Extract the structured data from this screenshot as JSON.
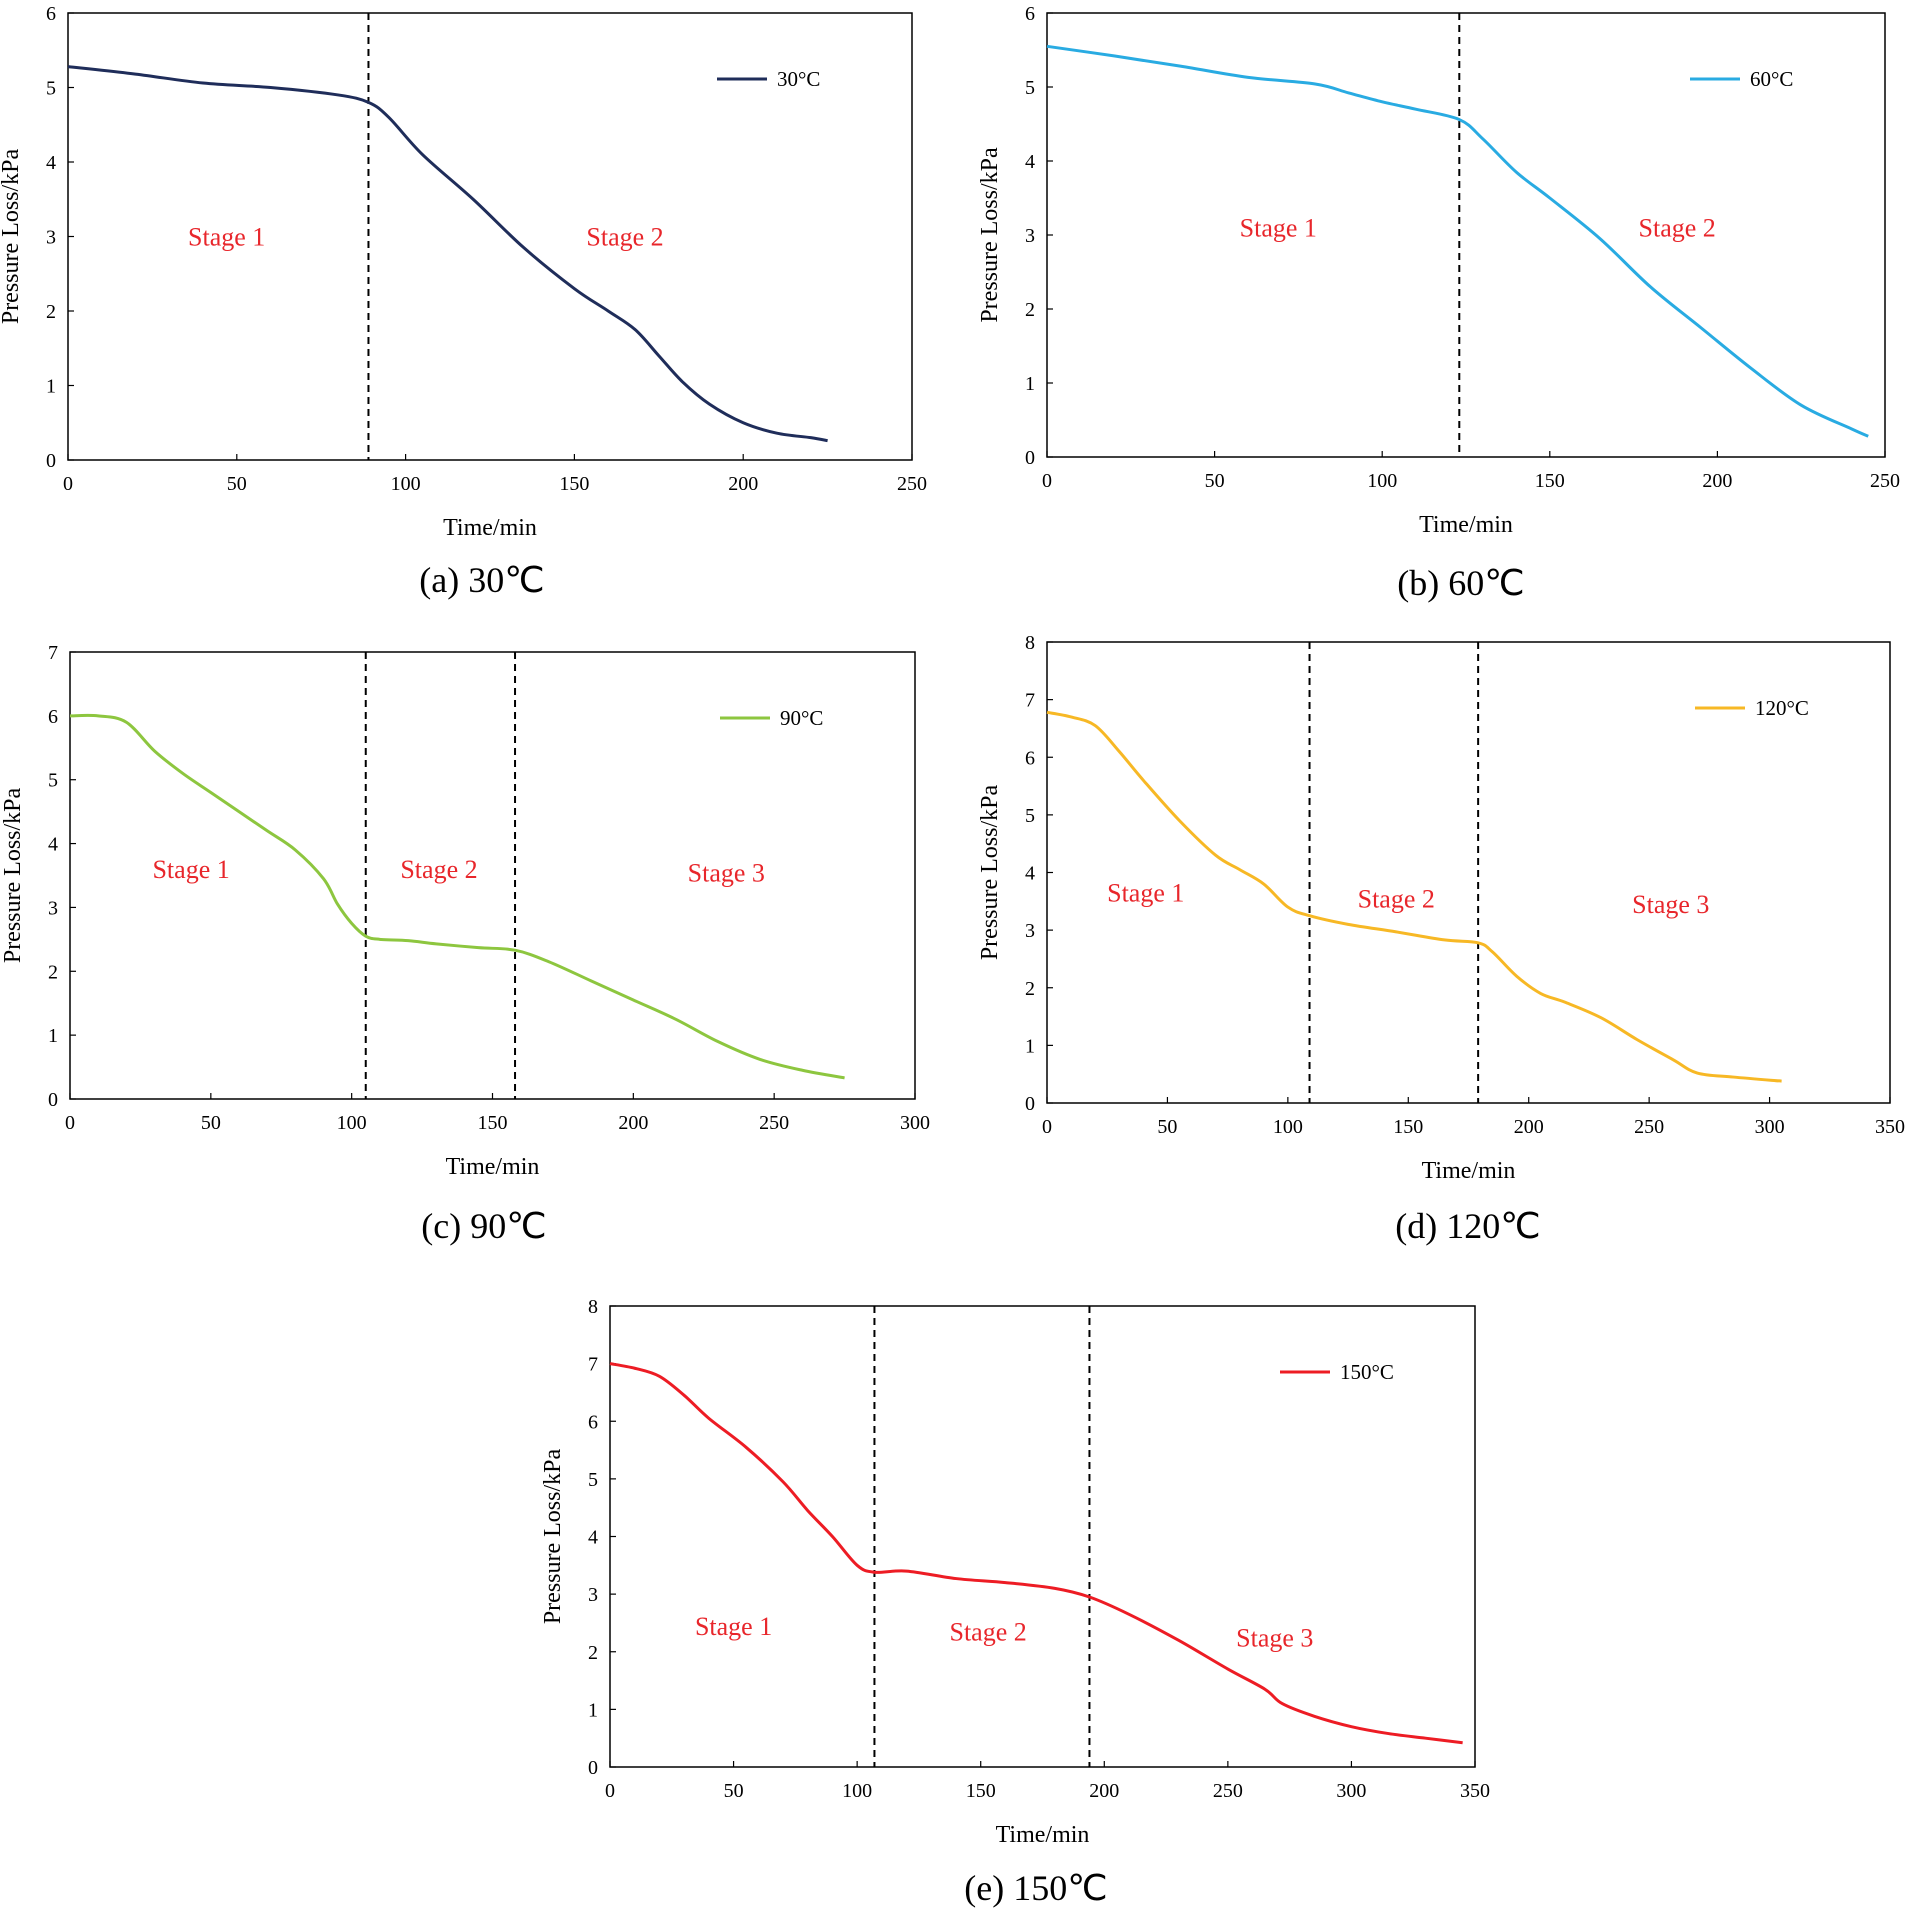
{
  "chart_data": [
    {
      "type": "line",
      "id": "a",
      "caption": "(a)  30℃",
      "xlabel": "Time/min",
      "ylabel": "Pressure Loss/kPa",
      "xlim": [
        0,
        250
      ],
      "ylim": [
        0,
        6
      ],
      "xticks": [
        0,
        50,
        100,
        150,
        200,
        250
      ],
      "yticks": [
        0,
        1,
        2,
        3,
        4,
        5,
        6
      ],
      "dividers": [
        89
      ],
      "stages": [
        {
          "label": "Stage 1",
          "x": 47,
          "y": 3.0
        },
        {
          "label": "Stage 2",
          "x": 165,
          "y": 3.0
        }
      ],
      "legend_position": "top-right",
      "series": [
        {
          "name": "30°C",
          "color": "#1f2d5a",
          "x": [
            0,
            20,
            40,
            60,
            80,
            89,
            95,
            105,
            120,
            135,
            150,
            160,
            168,
            175,
            182,
            190,
            200,
            210,
            220,
            225
          ],
          "y": [
            5.28,
            5.18,
            5.06,
            5.0,
            4.9,
            4.8,
            4.6,
            4.1,
            3.5,
            2.85,
            2.3,
            2.0,
            1.75,
            1.4,
            1.05,
            0.75,
            0.5,
            0.36,
            0.3,
            0.26
          ]
        }
      ]
    },
    {
      "type": "line",
      "id": "b",
      "caption": "(b)  60℃",
      "xlabel": "Time/min",
      "ylabel": "Pressure Loss/kPa",
      "xlim": [
        0,
        250
      ],
      "ylim": [
        0,
        6
      ],
      "xticks": [
        0,
        50,
        100,
        150,
        200,
        250
      ],
      "yticks": [
        0,
        1,
        2,
        3,
        4,
        5,
        6
      ],
      "dividers": [
        123
      ],
      "stages": [
        {
          "label": "Stage 1",
          "x": 69,
          "y": 3.1
        },
        {
          "label": "Stage 2",
          "x": 188,
          "y": 3.1
        }
      ],
      "legend_position": "top-right",
      "series": [
        {
          "name": "60°C",
          "color": "#29abe2",
          "x": [
            0,
            20,
            40,
            60,
            80,
            90,
            100,
            110,
            123,
            130,
            140,
            150,
            165,
            180,
            195,
            210,
            225,
            240,
            245
          ],
          "y": [
            5.55,
            5.42,
            5.28,
            5.13,
            5.04,
            4.92,
            4.8,
            4.7,
            4.56,
            4.3,
            3.85,
            3.5,
            2.95,
            2.3,
            1.75,
            1.2,
            0.7,
            0.38,
            0.28
          ]
        }
      ]
    },
    {
      "type": "line",
      "id": "c",
      "caption": "(c)  90℃",
      "xlabel": "Time/min",
      "ylabel": "Pressure Loss/kPa",
      "xlim": [
        0,
        300
      ],
      "ylim": [
        0,
        7
      ],
      "xticks": [
        0,
        50,
        100,
        150,
        200,
        250,
        300
      ],
      "yticks": [
        0,
        1,
        2,
        3,
        4,
        5,
        6,
        7
      ],
      "dividers": [
        105,
        158
      ],
      "stages": [
        {
          "label": "Stage 1",
          "x": 43,
          "y": 3.6
        },
        {
          "label": "Stage 2",
          "x": 131,
          "y": 3.6
        },
        {
          "label": "Stage 3",
          "x": 233,
          "y": 3.55
        }
      ],
      "legend_position": "top-right",
      "series": [
        {
          "name": "90°C",
          "color": "#8dc63f",
          "x": [
            0,
            10,
            20,
            30,
            40,
            50,
            60,
            70,
            80,
            90,
            95,
            100,
            105,
            110,
            120,
            130,
            145,
            158,
            170,
            185,
            200,
            215,
            230,
            245,
            260,
            275
          ],
          "y": [
            6.0,
            6.0,
            5.9,
            5.45,
            5.1,
            4.8,
            4.5,
            4.2,
            3.9,
            3.45,
            3.05,
            2.75,
            2.55,
            2.5,
            2.48,
            2.43,
            2.37,
            2.33,
            2.15,
            1.85,
            1.55,
            1.25,
            0.9,
            0.62,
            0.45,
            0.33
          ]
        }
      ]
    },
    {
      "type": "line",
      "id": "d",
      "caption": "(d)  120℃",
      "xlabel": "Time/min",
      "ylabel": "Pressure Loss/kPa",
      "xlim": [
        0,
        350
      ],
      "ylim": [
        0,
        8
      ],
      "xticks": [
        0,
        50,
        100,
        150,
        200,
        250,
        300,
        350
      ],
      "yticks": [
        0,
        1,
        2,
        3,
        4,
        5,
        6,
        7,
        8
      ],
      "dividers": [
        109,
        179
      ],
      "stages": [
        {
          "label": "Stage 1",
          "x": 41,
          "y": 3.65
        },
        {
          "label": "Stage 2",
          "x": 145,
          "y": 3.55
        },
        {
          "label": "Stage 3",
          "x": 259,
          "y": 3.45
        }
      ],
      "legend_position": "top-right",
      "series": [
        {
          "name": "120°C",
          "color": "#f7b825",
          "x": [
            0,
            10,
            20,
            30,
            40,
            55,
            70,
            80,
            90,
            100,
            109,
            125,
            145,
            165,
            179,
            185,
            195,
            205,
            215,
            230,
            245,
            260,
            270,
            285,
            305
          ],
          "y": [
            6.78,
            6.7,
            6.55,
            6.1,
            5.6,
            4.9,
            4.3,
            4.05,
            3.8,
            3.4,
            3.25,
            3.1,
            2.97,
            2.83,
            2.78,
            2.62,
            2.2,
            1.9,
            1.75,
            1.48,
            1.1,
            0.75,
            0.52,
            0.45,
            0.38
          ]
        }
      ]
    },
    {
      "type": "line",
      "id": "e",
      "caption": "(e) 150℃",
      "xlabel": "Time/min",
      "ylabel": "Pressure Loss/kPa",
      "xlim": [
        0,
        350
      ],
      "ylim": [
        0,
        8
      ],
      "xticks": [
        0,
        50,
        100,
        150,
        200,
        250,
        300,
        350
      ],
      "yticks": [
        0,
        1,
        2,
        3,
        4,
        5,
        6,
        7,
        8
      ],
      "dividers": [
        107,
        194
      ],
      "stages": [
        {
          "label": "Stage 1",
          "x": 50,
          "y": 2.45
        },
        {
          "label": "Stage 2",
          "x": 153,
          "y": 2.35
        },
        {
          "label": "Stage 3",
          "x": 269,
          "y": 2.25
        }
      ],
      "legend_position": "top-right",
      "series": [
        {
          "name": "150°C",
          "color": "#ed1c24",
          "x": [
            0,
            10,
            20,
            30,
            40,
            55,
            70,
            80,
            90,
            100,
            107,
            120,
            140,
            160,
            180,
            194,
            210,
            230,
            250,
            265,
            272,
            285,
            300,
            315,
            330,
            345
          ],
          "y": [
            7.0,
            6.92,
            6.78,
            6.45,
            6.05,
            5.55,
            4.95,
            4.45,
            4.0,
            3.5,
            3.38,
            3.4,
            3.27,
            3.2,
            3.1,
            2.95,
            2.65,
            2.2,
            1.7,
            1.35,
            1.1,
            0.88,
            0.7,
            0.58,
            0.5,
            0.42
          ]
        }
      ]
    }
  ]
}
